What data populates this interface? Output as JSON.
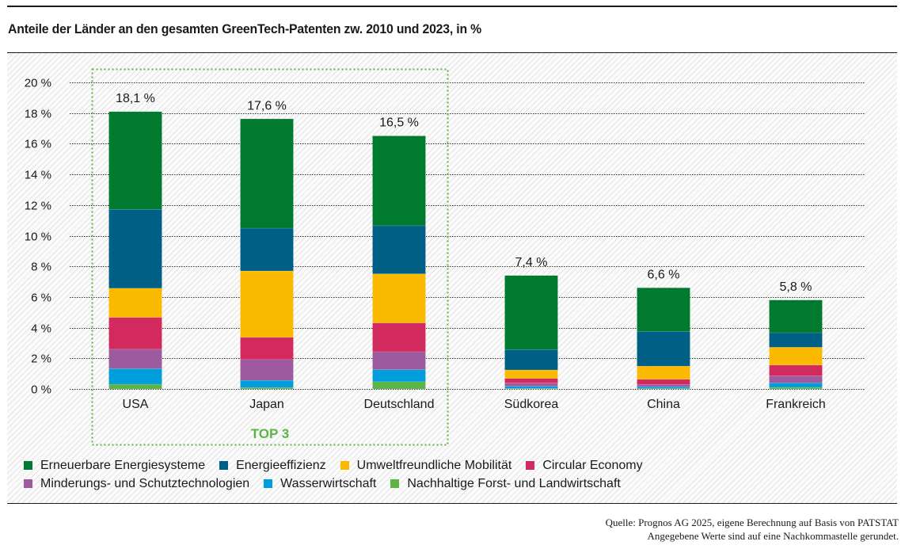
{
  "title": "Anteile der Länder an den gesamten GreenTech-Patenten zw. 2010 und 2023, in %",
  "chart_data": {
    "type": "bar",
    "stacked": true,
    "title": "Anteile der Länder an den gesamten GreenTech-Patenten zw. 2010 und 2023, in %",
    "xlabel": "",
    "ylabel": "",
    "ylim": [
      0,
      20
    ],
    "yticks": [
      0,
      2,
      4,
      6,
      8,
      10,
      12,
      14,
      16,
      18,
      20
    ],
    "ytick_labels": [
      "0 %",
      "2 %",
      "4 %",
      "6 %",
      "8 %",
      "10 %",
      "12 %",
      "14 %",
      "16 %",
      "18 %",
      "20 %"
    ],
    "grid": "horizontal dotted",
    "legend_position": "bottom",
    "categories": [
      "USA",
      "Japan",
      "Deutschland",
      "Südkorea",
      "China",
      "Frankreich"
    ],
    "totals": [
      18.1,
      17.6,
      16.5,
      7.4,
      6.6,
      5.8
    ],
    "total_labels": [
      "18,1 %",
      "17,6 %",
      "16,5 %",
      "7,4 %",
      "6,6 %",
      "5,8 %"
    ],
    "series": [
      {
        "name": "Nachhaltige Forst- und Landwirtschaft",
        "color": "#5db446",
        "values": [
          0.31,
          0.09,
          0.47,
          0.04,
          0.03,
          0.1
        ]
      },
      {
        "name": "Wasserwirtschaft",
        "color": "#009fdb",
        "values": [
          1.02,
          0.47,
          0.79,
          0.13,
          0.11,
          0.29
        ]
      },
      {
        "name": "Minderungs- und Schutztechnologien",
        "color": "#9d5a9f",
        "values": [
          1.26,
          1.36,
          1.17,
          0.23,
          0.16,
          0.47
        ]
      },
      {
        "name": "Circular Economy",
        "color": "#d22a5e",
        "values": [
          2.08,
          1.45,
          1.88,
          0.29,
          0.33,
          0.7
        ]
      },
      {
        "name": "Umweltfreundliche Mobilität",
        "color": "#fbb900",
        "values": [
          1.9,
          4.33,
          3.2,
          0.55,
          0.86,
          1.16
        ]
      },
      {
        "name": "Energieeffizienz",
        "color": "#005f85",
        "values": [
          5.15,
          2.79,
          3.14,
          1.33,
          2.27,
          0.95
        ]
      },
      {
        "name": "Erneuerbare Energiesysteme",
        "color": "#007a2e",
        "values": [
          6.37,
          7.13,
          5.86,
          4.83,
          2.84,
          2.13
        ]
      }
    ],
    "annotations": [
      {
        "text": "TOP 3",
        "groups": [
          "USA",
          "Japan",
          "Deutschland"
        ],
        "style": "dotted green box"
      }
    ]
  },
  "legend": {
    "rows": [
      [
        {
          "label": "Erneuerbare Energiesysteme",
          "color": "#007a2e"
        },
        {
          "label": "Energieeffizienz",
          "color": "#005f85"
        },
        {
          "label": "Umweltfreundliche Mobilität",
          "color": "#fbb900"
        },
        {
          "label": "Circular Economy",
          "color": "#d22a5e"
        }
      ],
      [
        {
          "label": "Minderungs- und Schutztechnologien",
          "color": "#9d5a9f"
        },
        {
          "label": "Wasserwirtschaft",
          "color": "#009fdb"
        },
        {
          "label": "Nachhaltige Forst- und Landwirtschaft",
          "color": "#5db446"
        }
      ]
    ]
  },
  "source": {
    "line1": "Quelle: Prognos AG 2025, eigene Berechnung auf Basis von PATSTAT",
    "line2": "Angegebene Werte sind auf eine Nachkommastelle gerundet."
  },
  "colors": {
    "highlight": "#5db446",
    "grid": "#333333"
  }
}
